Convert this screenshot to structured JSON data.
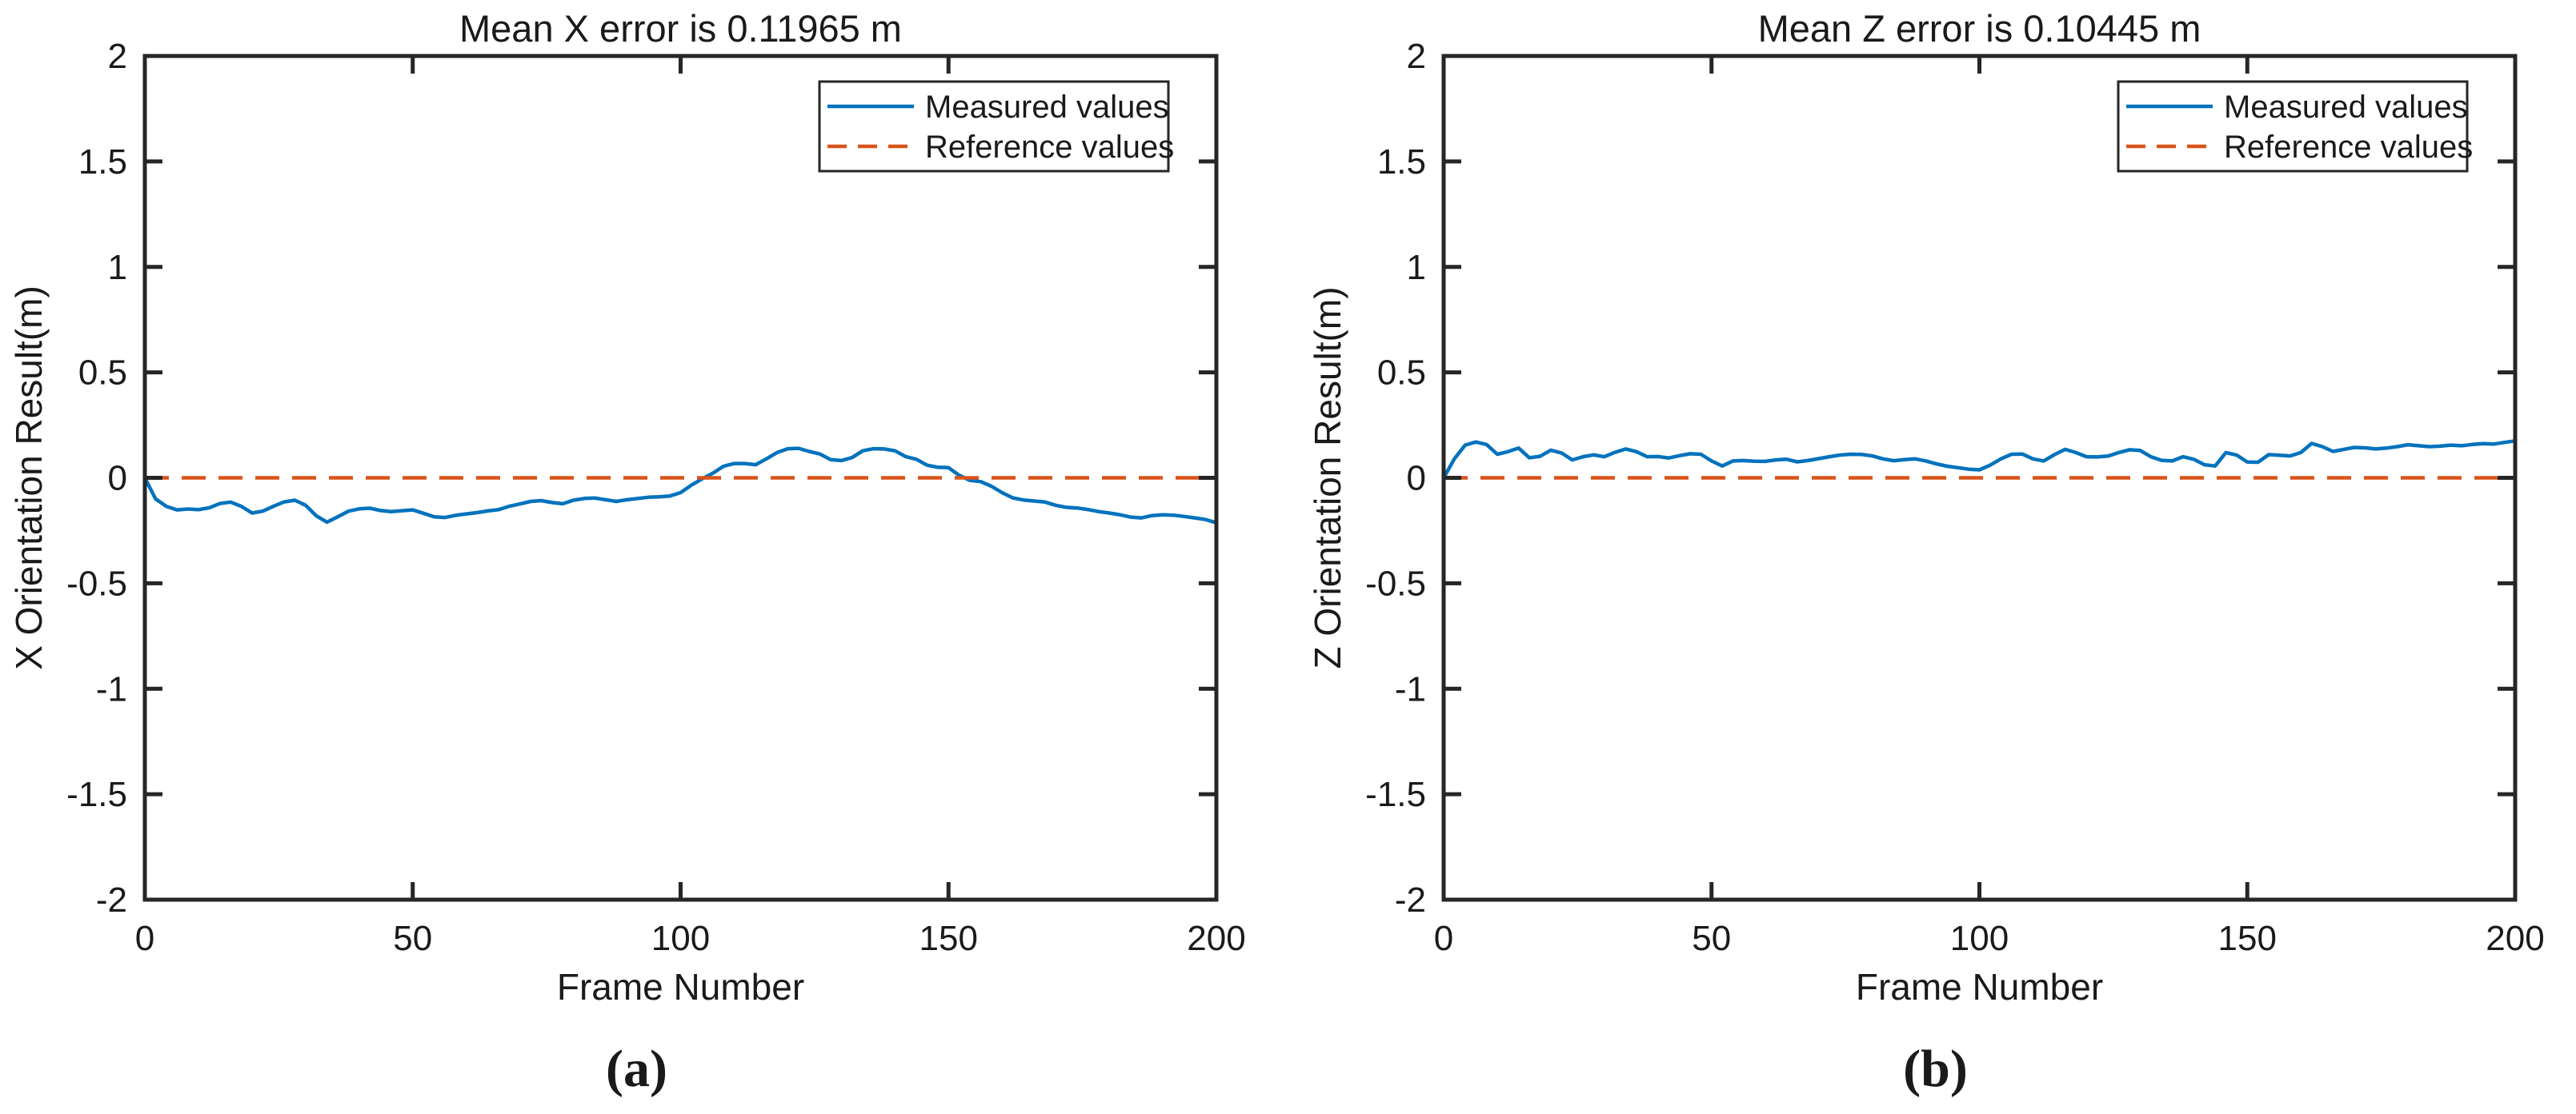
{
  "figure": {
    "background": "#ffffff",
    "axis_color": "#262626",
    "text_color": "#1a1a1a"
  },
  "legend": {
    "position": "northeast",
    "entries": [
      {
        "label": "Measured values",
        "color": "#0072BD",
        "style": "solid"
      },
      {
        "label": "Reference values",
        "color": "#D95319",
        "style": "dashed"
      }
    ]
  },
  "chart_data": [
    {
      "type": "line",
      "title": "Mean X error is 0.11965 m",
      "xlabel": "Frame Number",
      "ylabel": "X Orientation Result(m)",
      "caption": "(a)",
      "xlim": [
        0,
        200
      ],
      "ylim": [
        -2,
        2
      ],
      "xticks": [
        0,
        50,
        100,
        150,
        200
      ],
      "yticks": [
        -2,
        -1.5,
        -1,
        -0.5,
        0,
        0.5,
        1,
        1.5,
        2
      ],
      "grid": false,
      "legend_position": "northeast",
      "series": [
        {
          "name": "Measured values",
          "color": "#0072BD",
          "line_style": "solid",
          "x": [
            0,
            2,
            4,
            6,
            8,
            10,
            12,
            14,
            16,
            18,
            20,
            22,
            24,
            26,
            28,
            30,
            32,
            34,
            36,
            38,
            40,
            42,
            44,
            46,
            48,
            50,
            52,
            54,
            56,
            58,
            60,
            62,
            64,
            66,
            68,
            70,
            72,
            74,
            76,
            78,
            80,
            82,
            84,
            86,
            88,
            90,
            92,
            94,
            96,
            98,
            100,
            102,
            104,
            106,
            108,
            110,
            112,
            114,
            116,
            118,
            120,
            122,
            124,
            126,
            128,
            130,
            132,
            134,
            136,
            138,
            140,
            142,
            144,
            146,
            148,
            150,
            152,
            154,
            156,
            158,
            160,
            162,
            164,
            166,
            168,
            170,
            172,
            174,
            176,
            178,
            180,
            182,
            184,
            186,
            188,
            190,
            192,
            194,
            196,
            198,
            200
          ],
          "y": [
            0,
            -0.1,
            -0.135,
            -0.152,
            -0.148,
            -0.151,
            -0.142,
            -0.122,
            -0.115,
            -0.135,
            -0.167,
            -0.158,
            -0.135,
            -0.114,
            -0.106,
            -0.13,
            -0.18,
            -0.21,
            -0.185,
            -0.158,
            -0.147,
            -0.144,
            -0.155,
            -0.16,
            -0.156,
            -0.152,
            -0.168,
            -0.185,
            -0.188,
            -0.178,
            -0.171,
            -0.165,
            -0.157,
            -0.151,
            -0.135,
            -0.124,
            -0.112,
            -0.108,
            -0.117,
            -0.123,
            -0.106,
            -0.098,
            -0.096,
            -0.104,
            -0.112,
            -0.104,
            -0.098,
            -0.092,
            -0.09,
            -0.086,
            -0.07,
            -0.035,
            -0.005,
            0.022,
            0.055,
            0.068,
            0.068,
            0.062,
            0.09,
            0.12,
            0.138,
            0.14,
            0.125,
            0.113,
            0.086,
            0.082,
            0.096,
            0.128,
            0.138,
            0.137,
            0.128,
            0.101,
            0.088,
            0.06,
            0.05,
            0.048,
            0.012,
            -0.012,
            -0.018,
            -0.04,
            -0.07,
            -0.095,
            -0.105,
            -0.11,
            -0.115,
            -0.13,
            -0.14,
            -0.143,
            -0.15,
            -0.16,
            -0.167,
            -0.175,
            -0.186,
            -0.19,
            -0.179,
            -0.175,
            -0.177,
            -0.183,
            -0.19,
            -0.198,
            -0.213
          ]
        },
        {
          "name": "Reference values",
          "color": "#D95319",
          "line_style": "dashed",
          "x": [
            0,
            200
          ],
          "y": [
            0,
            0
          ]
        }
      ]
    },
    {
      "type": "line",
      "title": "Mean Z error is 0.10445 m",
      "xlabel": "Frame Number",
      "ylabel": "Z Orientation Result(m)",
      "caption": "(b)",
      "xlim": [
        0,
        200
      ],
      "ylim": [
        -2,
        2
      ],
      "xticks": [
        0,
        50,
        100,
        150,
        200
      ],
      "yticks": [
        -2,
        -1.5,
        -1,
        -0.5,
        0,
        0.5,
        1,
        1.5,
        2
      ],
      "grid": false,
      "legend_position": "northeast",
      "series": [
        {
          "name": "Measured values",
          "color": "#0072BD",
          "line_style": "solid",
          "x": [
            0,
            2,
            4,
            6,
            8,
            10,
            12,
            14,
            16,
            18,
            20,
            22,
            24,
            26,
            28,
            30,
            32,
            34,
            36,
            38,
            40,
            42,
            44,
            46,
            48,
            50,
            52,
            54,
            56,
            58,
            60,
            62,
            64,
            66,
            68,
            70,
            72,
            74,
            76,
            78,
            80,
            82,
            84,
            86,
            88,
            90,
            92,
            94,
            96,
            98,
            100,
            102,
            104,
            106,
            108,
            110,
            112,
            114,
            116,
            118,
            120,
            122,
            124,
            126,
            128,
            130,
            132,
            134,
            136,
            138,
            140,
            142,
            144,
            146,
            148,
            150,
            152,
            154,
            156,
            158,
            160,
            162,
            164,
            166,
            168,
            170,
            172,
            174,
            176,
            178,
            180,
            182,
            184,
            186,
            188,
            190,
            192,
            194,
            196,
            198,
            200
          ],
          "y": [
            0,
            0.09,
            0.155,
            0.17,
            0.158,
            0.112,
            0.124,
            0.141,
            0.095,
            0.102,
            0.131,
            0.118,
            0.085,
            0.1,
            0.109,
            0.1,
            0.121,
            0.137,
            0.124,
            0.1,
            0.101,
            0.094,
            0.105,
            0.114,
            0.112,
            0.08,
            0.056,
            0.08,
            0.082,
            0.079,
            0.078,
            0.085,
            0.088,
            0.076,
            0.082,
            0.091,
            0.1,
            0.108,
            0.112,
            0.111,
            0.104,
            0.09,
            0.081,
            0.086,
            0.09,
            0.08,
            0.066,
            0.055,
            0.048,
            0.041,
            0.038,
            0.06,
            0.09,
            0.112,
            0.113,
            0.09,
            0.08,
            0.11,
            0.135,
            0.12,
            0.1,
            0.099,
            0.103,
            0.12,
            0.133,
            0.13,
            0.1,
            0.083,
            0.08,
            0.1,
            0.088,
            0.062,
            0.056,
            0.12,
            0.108,
            0.075,
            0.074,
            0.11,
            0.107,
            0.104,
            0.12,
            0.163,
            0.148,
            0.125,
            0.135,
            0.144,
            0.142,
            0.137,
            0.141,
            0.148,
            0.157,
            0.152,
            0.148,
            0.15,
            0.155,
            0.152,
            0.158,
            0.162,
            0.16,
            0.168,
            0.175
          ]
        },
        {
          "name": "Reference values",
          "color": "#D95319",
          "line_style": "dashed",
          "x": [
            0,
            200
          ],
          "y": [
            0,
            0
          ]
        }
      ]
    }
  ]
}
